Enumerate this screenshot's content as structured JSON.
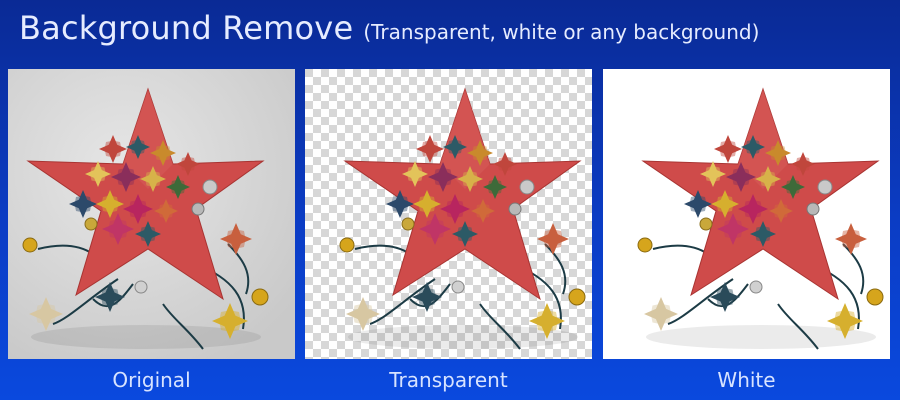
{
  "header": {
    "title": "Background Remove",
    "subtitle": "(Transparent, white or any background)"
  },
  "panels": [
    {
      "caption": "Original",
      "background": "gray"
    },
    {
      "caption": "Transparent",
      "background": "checkerboard"
    },
    {
      "caption": "White",
      "background": "white"
    }
  ],
  "colors": {
    "page_background": "#0b3cc4",
    "text": "#e6ecff",
    "star": "#cf4b4a",
    "original_background": "#d9d9d9",
    "white_background": "#ffffff"
  }
}
